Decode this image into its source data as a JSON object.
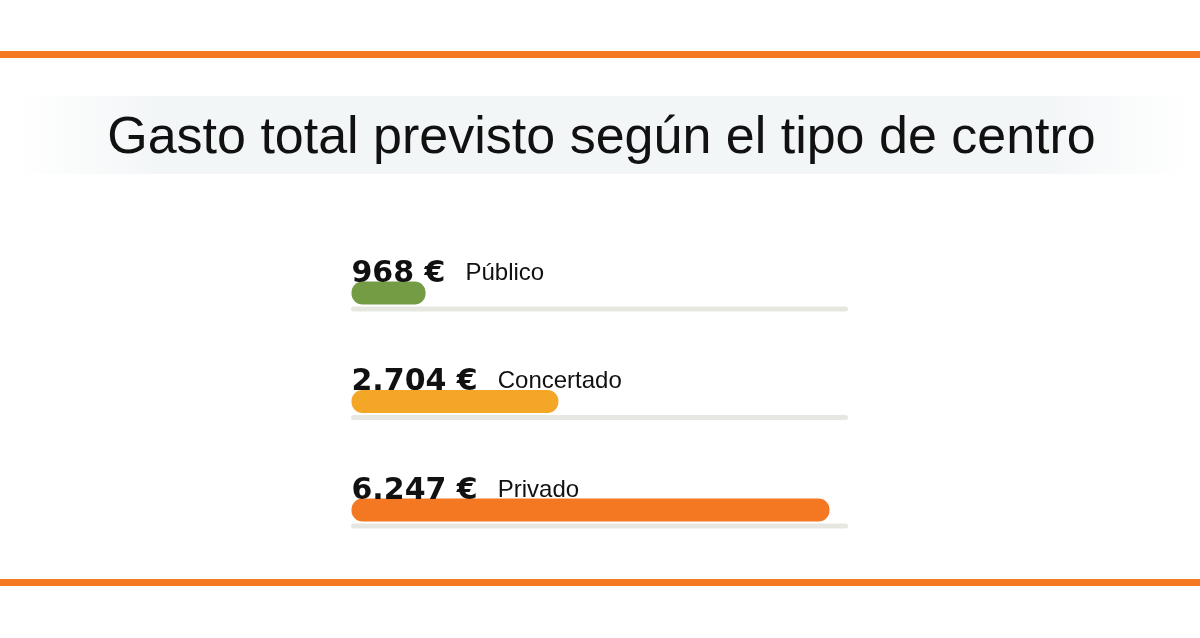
{
  "chart_data": {
    "type": "bar",
    "orientation": "horizontal",
    "title": "Gasto total previsto según el tipo de centro",
    "categories": [
      "Público",
      "Concertado",
      "Privado"
    ],
    "values": [
      968,
      2704,
      6247
    ],
    "colors": [
      "#739c45",
      "#f4a726",
      "#f47721"
    ],
    "value_labels": [
      "968 €",
      "2.704 €",
      "6.247 €"
    ]
  }
}
